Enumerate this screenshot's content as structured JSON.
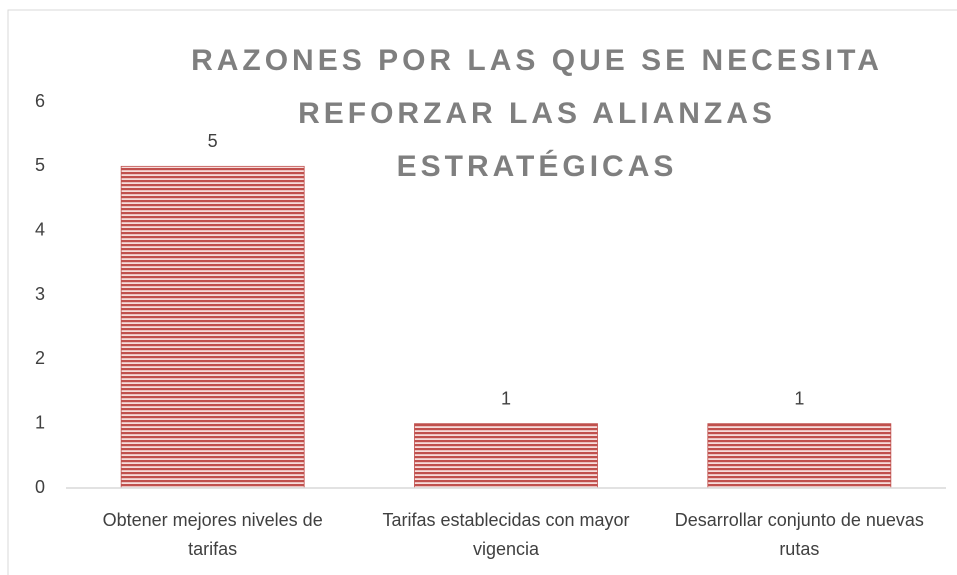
{
  "chart_data": {
    "type": "bar",
    "title": "RAZONES POR LAS QUE SE NECESITA REFORZAR LAS ALIANZAS ESTRATÉGICAS",
    "categories": [
      "Obtener mejores niveles de tarifas",
      "Tarifas establecidas con mayor vigencia",
      "Desarrollar conjunto de nuevas rutas"
    ],
    "values": [
      5,
      1,
      1
    ],
    "color": "#c0504d",
    "ylim": [
      0,
      6
    ],
    "yticks": [
      0,
      1,
      2,
      3,
      4,
      5,
      6
    ],
    "grid": false
  }
}
